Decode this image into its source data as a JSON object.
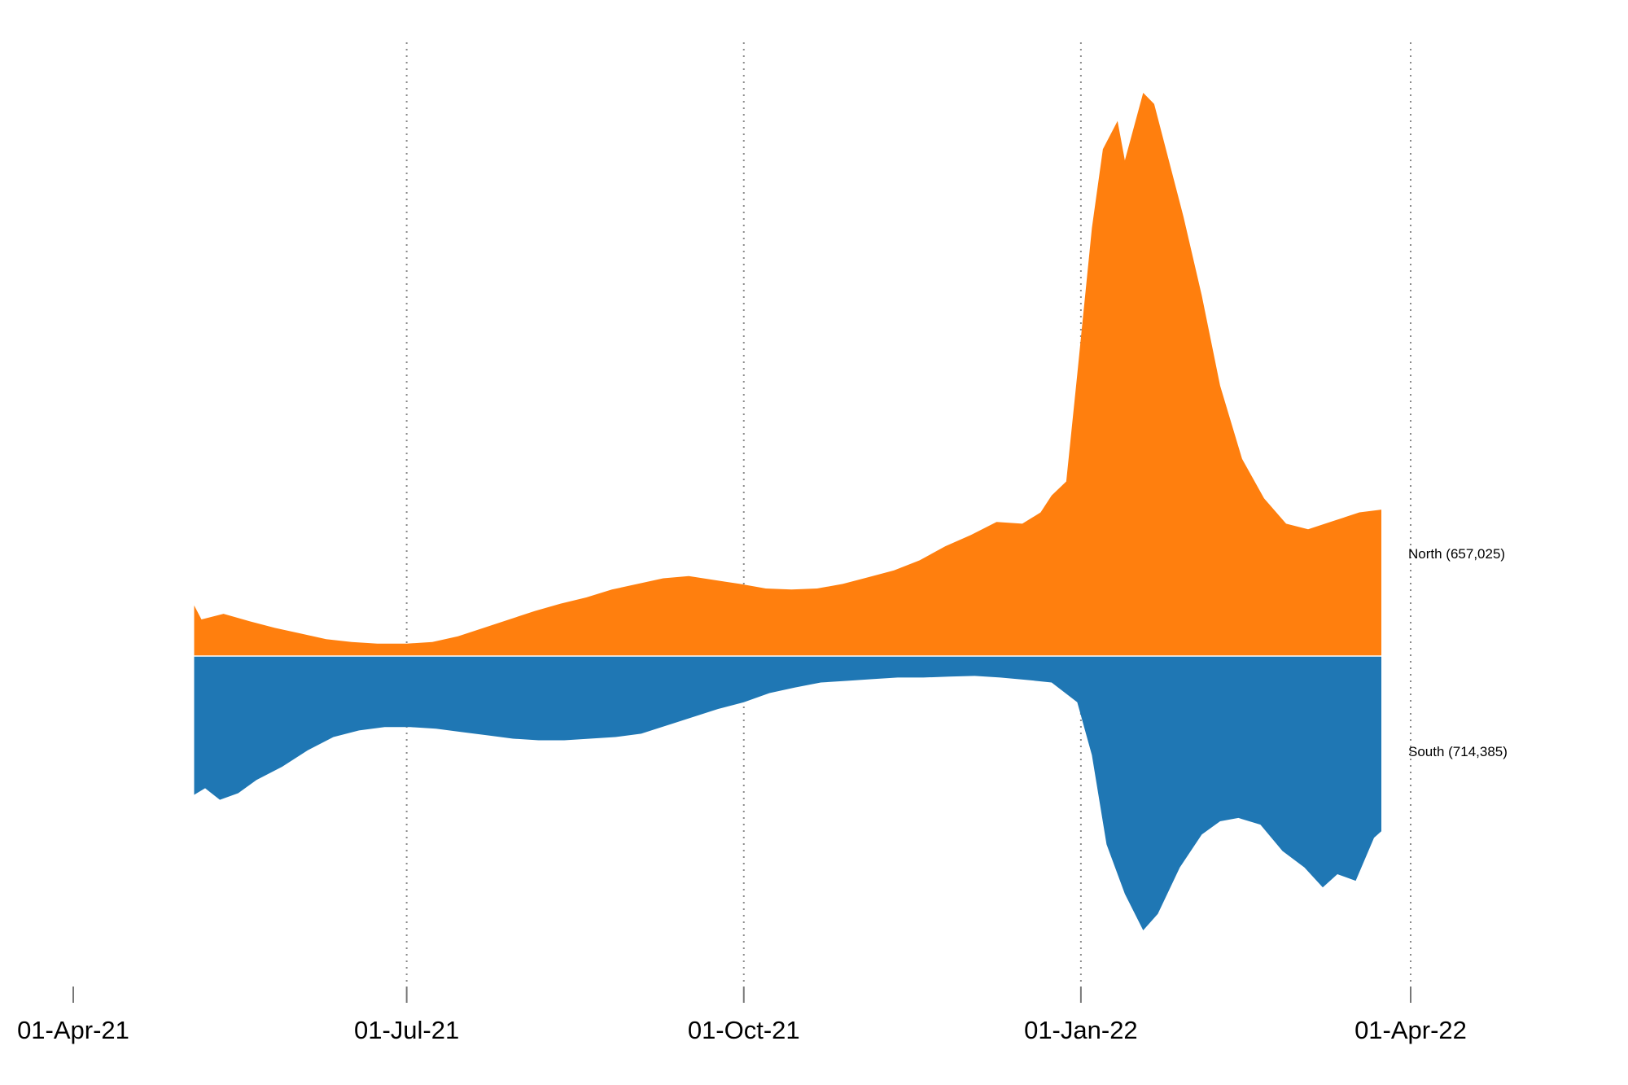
{
  "chart_data": {
    "type": "area",
    "subtype": "mirrored-stream",
    "title": "",
    "xlabel": "",
    "ylabel": "",
    "x_axis": {
      "type": "date",
      "ticks": [
        {
          "date": "2021-04-01",
          "label": "01-Apr-21"
        },
        {
          "date": "2021-07-01",
          "label": "01-Jul-21"
        },
        {
          "date": "2021-10-01",
          "label": "01-Oct-21"
        },
        {
          "date": "2022-01-01",
          "label": "01-Jan-22"
        },
        {
          "date": "2022-04-01",
          "label": "01-Apr-22"
        }
      ],
      "range": [
        "2021-04-01",
        "2022-04-01"
      ],
      "gridlines": "dotted vertical at ticks"
    },
    "y_axis": {
      "visible": false,
      "relative_scale": true
    },
    "series": [
      {
        "name": "North",
        "label": "North (657,025)",
        "color": "#ff7f0e",
        "direction": "up",
        "points": [
          [
            "2021-05-04",
            0.09
          ],
          [
            "2021-05-06",
            0.065
          ],
          [
            "2021-05-12",
            0.075
          ],
          [
            "2021-05-19",
            0.062
          ],
          [
            "2021-05-26",
            0.05
          ],
          [
            "2021-06-02",
            0.04
          ],
          [
            "2021-06-09",
            0.03
          ],
          [
            "2021-06-16",
            0.025
          ],
          [
            "2021-06-23",
            0.022
          ],
          [
            "2021-07-01",
            0.022
          ],
          [
            "2021-07-08",
            0.025
          ],
          [
            "2021-07-15",
            0.035
          ],
          [
            "2021-07-22",
            0.05
          ],
          [
            "2021-07-29",
            0.065
          ],
          [
            "2021-08-05",
            0.08
          ],
          [
            "2021-08-12",
            0.093
          ],
          [
            "2021-08-19",
            0.104
          ],
          [
            "2021-08-26",
            0.118
          ],
          [
            "2021-09-02",
            0.128
          ],
          [
            "2021-09-09",
            0.138
          ],
          [
            "2021-09-16",
            0.142
          ],
          [
            "2021-09-23",
            0.135
          ],
          [
            "2021-09-30",
            0.128
          ],
          [
            "2021-10-07",
            0.12
          ],
          [
            "2021-10-14",
            0.118
          ],
          [
            "2021-10-21",
            0.12
          ],
          [
            "2021-10-28",
            0.128
          ],
          [
            "2021-11-04",
            0.14
          ],
          [
            "2021-11-11",
            0.152
          ],
          [
            "2021-11-18",
            0.17
          ],
          [
            "2021-11-25",
            0.195
          ],
          [
            "2021-12-02",
            0.215
          ],
          [
            "2021-12-09",
            0.238
          ],
          [
            "2021-12-16",
            0.235
          ],
          [
            "2021-12-21",
            0.255
          ],
          [
            "2021-12-24",
            0.285
          ],
          [
            "2021-12-28",
            0.31
          ],
          [
            "2021-12-31",
            0.5
          ],
          [
            "2022-01-04",
            0.76
          ],
          [
            "2022-01-07",
            0.9
          ],
          [
            "2022-01-11",
            0.95
          ],
          [
            "2022-01-13",
            0.88
          ],
          [
            "2022-01-18",
            1.0
          ],
          [
            "2022-01-21",
            0.98
          ],
          [
            "2022-01-25",
            0.88
          ],
          [
            "2022-01-29",
            0.78
          ],
          [
            "2022-02-03",
            0.64
          ],
          [
            "2022-02-08",
            0.48
          ],
          [
            "2022-02-14",
            0.35
          ],
          [
            "2022-02-20",
            0.28
          ],
          [
            "2022-02-26",
            0.235
          ],
          [
            "2022-03-04",
            0.225
          ],
          [
            "2022-03-11",
            0.24
          ],
          [
            "2022-03-18",
            0.255
          ],
          [
            "2022-03-24",
            0.26
          ]
        ]
      },
      {
        "name": "South",
        "label": "South (714,385)",
        "color": "#1f77b4",
        "direction": "down",
        "points": [
          [
            "2021-05-04",
            0.42
          ],
          [
            "2021-05-07",
            0.4
          ],
          [
            "2021-05-11",
            0.435
          ],
          [
            "2021-05-16",
            0.415
          ],
          [
            "2021-05-21",
            0.375
          ],
          [
            "2021-05-28",
            0.335
          ],
          [
            "2021-06-04",
            0.285
          ],
          [
            "2021-06-11",
            0.245
          ],
          [
            "2021-06-18",
            0.225
          ],
          [
            "2021-06-25",
            0.215
          ],
          [
            "2021-07-02",
            0.215
          ],
          [
            "2021-07-09",
            0.22
          ],
          [
            "2021-07-16",
            0.23
          ],
          [
            "2021-07-23",
            0.24
          ],
          [
            "2021-07-30",
            0.25
          ],
          [
            "2021-08-06",
            0.255
          ],
          [
            "2021-08-13",
            0.255
          ],
          [
            "2021-08-20",
            0.25
          ],
          [
            "2021-08-27",
            0.245
          ],
          [
            "2021-09-03",
            0.235
          ],
          [
            "2021-09-10",
            0.21
          ],
          [
            "2021-09-17",
            0.185
          ],
          [
            "2021-09-24",
            0.16
          ],
          [
            "2021-10-01",
            0.14
          ],
          [
            "2021-10-08",
            0.112
          ],
          [
            "2021-10-15",
            0.095
          ],
          [
            "2021-10-22",
            0.08
          ],
          [
            "2021-10-29",
            0.075
          ],
          [
            "2021-11-05",
            0.07
          ],
          [
            "2021-11-12",
            0.065
          ],
          [
            "2021-11-19",
            0.065
          ],
          [
            "2021-11-26",
            0.062
          ],
          [
            "2021-12-03",
            0.06
          ],
          [
            "2021-12-10",
            0.065
          ],
          [
            "2021-12-17",
            0.072
          ],
          [
            "2021-12-24",
            0.08
          ],
          [
            "2021-12-31",
            0.14
          ],
          [
            "2022-01-04",
            0.3
          ],
          [
            "2022-01-08",
            0.57
          ],
          [
            "2022-01-13",
            0.72
          ],
          [
            "2022-01-18",
            0.83
          ],
          [
            "2022-01-22",
            0.78
          ],
          [
            "2022-01-28",
            0.64
          ],
          [
            "2022-02-03",
            0.54
          ],
          [
            "2022-02-08",
            0.5
          ],
          [
            "2022-02-13",
            0.49
          ],
          [
            "2022-02-19",
            0.51
          ],
          [
            "2022-02-25",
            0.59
          ],
          [
            "2022-03-03",
            0.64
          ],
          [
            "2022-03-08",
            0.7
          ],
          [
            "2022-03-12",
            0.66
          ],
          [
            "2022-03-17",
            0.68
          ],
          [
            "2022-03-22",
            0.55
          ],
          [
            "2022-03-24",
            0.53
          ]
        ]
      }
    ],
    "legend": "none; series labeled at right end"
  }
}
